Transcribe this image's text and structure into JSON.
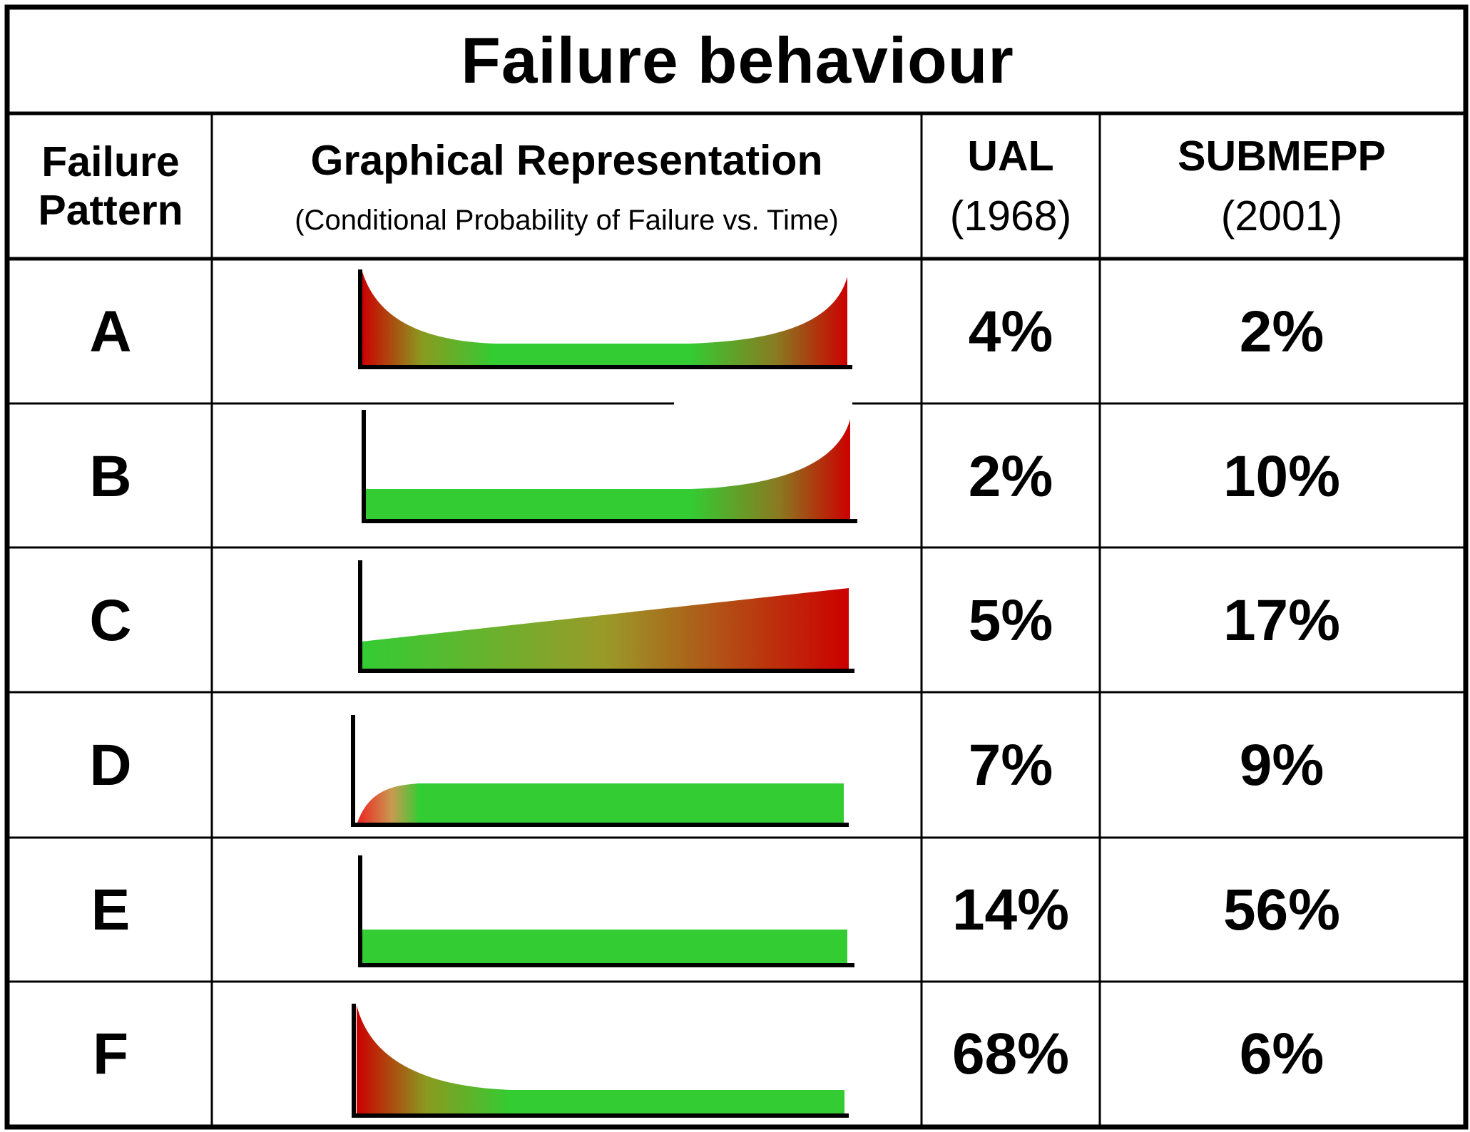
{
  "chart_data": {
    "type": "table",
    "title": "Failure behaviour",
    "columns": {
      "pattern_line1": "Failure",
      "pattern_line2": "Pattern",
      "graph": "Graphical Representation",
      "graph_sub": "(Conditional  Probability of Failure vs. Time)",
      "ual": "UAL",
      "ual_year": "(1968)",
      "submepp": "SUBMEPP",
      "submepp_year": "(2001)"
    },
    "rows": [
      {
        "pattern": "A",
        "curve": "bathtub",
        "ual": "4%",
        "submepp": "2%"
      },
      {
        "pattern": "B",
        "curve": "wear-out",
        "ual": "2%",
        "submepp": "10%"
      },
      {
        "pattern": "C",
        "curve": "steadily-increasing",
        "ual": "5%",
        "submepp": "17%"
      },
      {
        "pattern": "D",
        "curve": "rising-then-constant",
        "ual": "7%",
        "submepp": "9%"
      },
      {
        "pattern": "E",
        "curve": "constant-random",
        "ual": "14%",
        "submepp": "56%"
      },
      {
        "pattern": "F",
        "curve": "infant-mortality",
        "ual": "68%",
        "submepp": "6%"
      }
    ],
    "colors": {
      "low": "#33cc33",
      "mid": "#88b830",
      "high": "#cc0000",
      "border": "#000000"
    }
  }
}
